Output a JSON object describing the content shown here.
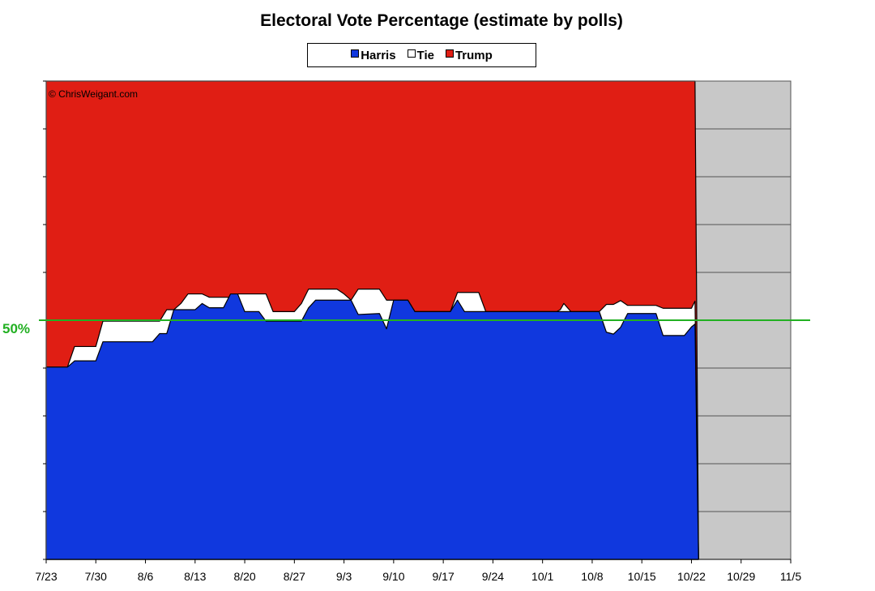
{
  "chart_data": {
    "type": "area",
    "title": "Electoral Vote Percentage (estimate by polls)",
    "watermark": "© ChrisWeigant.com",
    "legend": {
      "placement": "top-center",
      "entries": [
        {
          "name": "Harris",
          "color": "#1038de"
        },
        {
          "name": "Tie",
          "color": "#ffffff"
        },
        {
          "name": "Trump",
          "color": "#e01e14"
        }
      ]
    },
    "x_ticks": [
      "7/23",
      "7/30",
      "8/6",
      "8/13",
      "8/20",
      "8/27",
      "9/3",
      "9/10",
      "9/17",
      "9/24",
      "10/1",
      "10/8",
      "10/15",
      "10/22",
      "10/29",
      "11/5"
    ],
    "x_unit": "days",
    "xlim": [
      0,
      105
    ],
    "ylim": [
      0,
      100
    ],
    "reference_line": {
      "label": "50%",
      "value": 50,
      "color": "#22b022"
    },
    "grid": "horizontal lines",
    "projection_color": "#c8c8c8",
    "series": [
      {
        "name": "Harris",
        "color": "#1038de",
        "points": [
          [
            0,
            40.2
          ],
          [
            3,
            40.2
          ],
          [
            4,
            41.5
          ],
          [
            7,
            41.5
          ],
          [
            8,
            45.5
          ],
          [
            15,
            45.5
          ],
          [
            16,
            47.2
          ],
          [
            17,
            47.2
          ],
          [
            18,
            52.2
          ],
          [
            21,
            52.2
          ],
          [
            22,
            53.5
          ],
          [
            23,
            52.6
          ],
          [
            25,
            52.6
          ],
          [
            26,
            55.5
          ],
          [
            27,
            55.5
          ],
          [
            28,
            51.8
          ],
          [
            30,
            51.8
          ],
          [
            31,
            49.8
          ],
          [
            36,
            49.8
          ],
          [
            37,
            52.6
          ],
          [
            38,
            54.2
          ],
          [
            43,
            54.2
          ],
          [
            44,
            51.2
          ],
          [
            47,
            51.4
          ],
          [
            48,
            48.2
          ],
          [
            49,
            54.2
          ],
          [
            51,
            54.2
          ],
          [
            52,
            51.8
          ],
          [
            57,
            51.8
          ],
          [
            58,
            54.2
          ],
          [
            59,
            51.8
          ],
          [
            70,
            51.8
          ],
          [
            78,
            51.8
          ],
          [
            79,
            47.5
          ],
          [
            80,
            47.1
          ],
          [
            81,
            48.5
          ],
          [
            82,
            51.4
          ],
          [
            86,
            51.4
          ],
          [
            87,
            46.8
          ],
          [
            90,
            46.8
          ],
          [
            91,
            48.6
          ],
          [
            91.5,
            49.2
          ],
          [
            92,
            0
          ]
        ]
      },
      {
        "name": "Tie",
        "color": "#ffffff",
        "points": [
          [
            0,
            40.2
          ],
          [
            3,
            40.2
          ],
          [
            4,
            44.5
          ],
          [
            7,
            44.5
          ],
          [
            8,
            49.8
          ],
          [
            16,
            49.8
          ],
          [
            17,
            52.2
          ],
          [
            18,
            52.2
          ],
          [
            19,
            53.5
          ],
          [
            20,
            55.5
          ],
          [
            22,
            55.5
          ],
          [
            23,
            54.8
          ],
          [
            26,
            54.8
          ],
          [
            27,
            55.5
          ],
          [
            30,
            55.5
          ],
          [
            31,
            55.5
          ],
          [
            32,
            51.8
          ],
          [
            35,
            51.8
          ],
          [
            36,
            53.5
          ],
          [
            37,
            56.5
          ],
          [
            41,
            56.5
          ],
          [
            42,
            55.5
          ],
          [
            43,
            54.2
          ],
          [
            44,
            56.5
          ],
          [
            47,
            56.5
          ],
          [
            48,
            54.2
          ],
          [
            49,
            54.2
          ],
          [
            51,
            54.2
          ],
          [
            52,
            51.8
          ],
          [
            57,
            51.8
          ],
          [
            58,
            55.8
          ],
          [
            61,
            55.8
          ],
          [
            62,
            51.8
          ],
          [
            72,
            51.8
          ],
          [
            72.5,
            52.2
          ],
          [
            73,
            53.5
          ],
          [
            74,
            51.8
          ],
          [
            78,
            51.8
          ],
          [
            79,
            53.3
          ],
          [
            80,
            53.3
          ],
          [
            81,
            54.1
          ],
          [
            82,
            53.1
          ],
          [
            86,
            53.1
          ],
          [
            87,
            52.5
          ],
          [
            90,
            52.5
          ],
          [
            91,
            52.5
          ],
          [
            91.5,
            54.0
          ],
          [
            92,
            0
          ]
        ]
      },
      {
        "name": "Trump",
        "color": "#e01e14",
        "points": [
          [
            0,
            100
          ],
          [
            91.5,
            100
          ],
          [
            92,
            0
          ]
        ]
      }
    ]
  }
}
